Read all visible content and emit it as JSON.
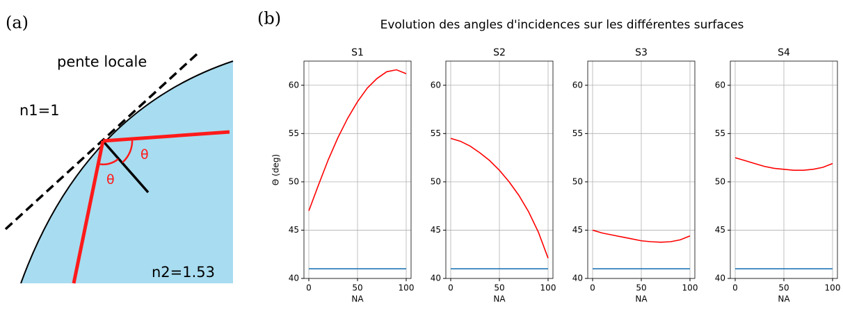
{
  "diagram": {
    "panel_label": "(a)",
    "slope_label": "pente locale",
    "n1_label": "n1=1",
    "n2_label": "n2=1.53",
    "angle_label_1": "θ",
    "angle_label_2": "θ"
  },
  "figure": {
    "panel_label": "(b)",
    "title": "Evolution des angles d'incidences sur les différentes surfaces"
  },
  "chart_data": [
    {
      "type": "line",
      "title": "S1",
      "xlabel": "NA",
      "ylabel": "Θ (deg)",
      "x": [
        0,
        10,
        20,
        30,
        40,
        50,
        60,
        70,
        80,
        90,
        100
      ],
      "series": [
        {
          "color": "#ff0000",
          "values": [
            47,
            49.7,
            52.3,
            54.6,
            56.6,
            58.3,
            59.7,
            60.7,
            61.4,
            61.6,
            61.2
          ]
        },
        {
          "color": "#1f77b4",
          "values": [
            41,
            41,
            41,
            41,
            41,
            41,
            41,
            41,
            41,
            41,
            41
          ]
        }
      ],
      "xlim": [
        -5,
        105
      ],
      "ylim": [
        40,
        62.5
      ],
      "xticks": [
        0,
        50,
        100
      ],
      "yticks": [
        40,
        45,
        50,
        55,
        60
      ],
      "grid": true
    },
    {
      "type": "line",
      "title": "S2",
      "xlabel": "NA",
      "x": [
        0,
        10,
        20,
        30,
        40,
        50,
        60,
        70,
        80,
        90,
        100
      ],
      "series": [
        {
          "color": "#ff0000",
          "values": [
            54.5,
            54.2,
            53.7,
            53.0,
            52.2,
            51.2,
            50.0,
            48.6,
            46.9,
            44.8,
            42.1
          ]
        },
        {
          "color": "#1f77b4",
          "values": [
            41,
            41,
            41,
            41,
            41,
            41,
            41,
            41,
            41,
            41,
            41
          ]
        }
      ],
      "xlim": [
        -5,
        105
      ],
      "ylim": [
        40,
        62.5
      ],
      "xticks": [
        0,
        50,
        100
      ],
      "yticks": [
        40,
        45,
        50,
        55,
        60
      ],
      "grid": true
    },
    {
      "type": "line",
      "title": "S3",
      "xlabel": "NA",
      "x": [
        0,
        10,
        20,
        30,
        40,
        50,
        60,
        70,
        80,
        90,
        100
      ],
      "series": [
        {
          "color": "#ff0000",
          "values": [
            45.0,
            44.7,
            44.5,
            44.3,
            44.1,
            43.9,
            43.8,
            43.75,
            43.8,
            44.0,
            44.4
          ]
        },
        {
          "color": "#1f77b4",
          "values": [
            41,
            41,
            41,
            41,
            41,
            41,
            41,
            41,
            41,
            41,
            41
          ]
        }
      ],
      "xlim": [
        -5,
        105
      ],
      "ylim": [
        40,
        62.5
      ],
      "xticks": [
        0,
        50,
        100
      ],
      "yticks": [
        40,
        45,
        50,
        55,
        60
      ],
      "grid": true
    },
    {
      "type": "line",
      "title": "S4",
      "xlabel": "NA",
      "x": [
        0,
        10,
        20,
        30,
        40,
        50,
        60,
        70,
        80,
        90,
        100
      ],
      "series": [
        {
          "color": "#ff0000",
          "values": [
            52.5,
            52.2,
            51.9,
            51.6,
            51.4,
            51.3,
            51.2,
            51.2,
            51.3,
            51.5,
            51.9
          ]
        },
        {
          "color": "#1f77b4",
          "values": [
            41,
            41,
            41,
            41,
            41,
            41,
            41,
            41,
            41,
            41,
            41
          ]
        }
      ],
      "xlim": [
        -5,
        105
      ],
      "ylim": [
        40,
        62.5
      ],
      "xticks": [
        0,
        50,
        100
      ],
      "yticks": [
        40,
        45,
        50,
        55,
        60
      ],
      "grid": true
    }
  ]
}
